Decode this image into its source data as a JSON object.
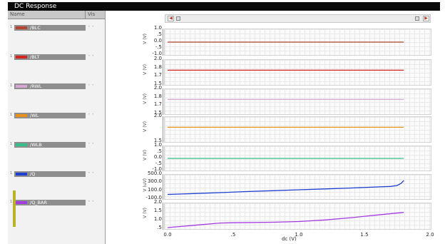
{
  "window": {
    "title": "DC Response"
  },
  "columns": {
    "name": "Name",
    "vis": "Vis"
  },
  "signals": [
    {
      "idx": "1",
      "name": "/BLC",
      "color": "#b5452f",
      "vis": "• •"
    },
    {
      "idx": "1",
      "name": "/BLT",
      "color": "#d4241f",
      "vis": "• •"
    },
    {
      "idx": "1",
      "name": "/RWL",
      "color": "#d7a6d2",
      "vis": "• •"
    },
    {
      "idx": "1",
      "name": "/WL",
      "color": "#e8911a",
      "vis": "• •"
    },
    {
      "idx": "1",
      "name": "/WLB",
      "color": "#33c08a",
      "vis": "• •"
    },
    {
      "idx": "1",
      "name": "/Q",
      "color": "#1f3fd0",
      "vis": "• •"
    },
    {
      "idx": "1",
      "name": "/Q_BAR",
      "color": "#a63be0",
      "vis": "• •"
    }
  ],
  "panels": [
    {
      "signal": "/BLC",
      "ylabel": "V (V)",
      "ticks": [
        "1.0",
        ".5",
        "0.0",
        "-.5",
        "-1.0"
      ],
      "level": 0.0
    },
    {
      "signal": "/BLT",
      "ylabel": "V (V)",
      "ticks": [
        "2.0",
        "1.8",
        "1.7",
        "1.5"
      ],
      "level": 1.8
    },
    {
      "signal": "/RWL",
      "ylabel": "V (V)",
      "ticks": [
        "2.0",
        "1.8",
        "1.7",
        "1.5"
      ],
      "level": 1.8
    },
    {
      "signal": "/WL",
      "ylabel": "V (V)",
      "ticks": [
        "2.0",
        "1.5"
      ],
      "level": 1.8
    },
    {
      "signal": "/WLB",
      "ylabel": "V (V)",
      "ticks": [
        "1.0",
        ".5",
        "0.0",
        "-.5",
        "-1.0"
      ],
      "level": 0.0
    },
    {
      "signal": "/Q",
      "ylabel": "V (uV)",
      "ticks": [
        "500.0",
        "300.0",
        "100.0",
        "-100.0"
      ]
    },
    {
      "signal": "/Q_BAR",
      "ylabel": "V (V)",
      "ticks": [
        "2.0",
        "1.5",
        "1.0",
        ".5"
      ]
    }
  ],
  "chart_data": {
    "type": "line",
    "xlabel": "dc (V)",
    "xticks": [
      "0.0",
      ".5",
      "1.0",
      "1.5",
      "2.0"
    ],
    "xlim": [
      0.0,
      2.0
    ],
    "series": [
      {
        "name": "/BLC",
        "x": [
          0.0,
          1.8
        ],
        "y": [
          0.0,
          0.0
        ],
        "ylim": [
          -1.0,
          1.0
        ],
        "unit": "V"
      },
      {
        "name": "/BLT",
        "x": [
          0.0,
          1.8
        ],
        "y": [
          1.8,
          1.8
        ],
        "ylim": [
          1.5,
          2.0
        ],
        "unit": "V"
      },
      {
        "name": "/RWL",
        "x": [
          0.0,
          1.8
        ],
        "y": [
          1.8,
          1.8
        ],
        "ylim": [
          1.5,
          2.0
        ],
        "unit": "V"
      },
      {
        "name": "/WL",
        "x": [
          0.0,
          1.8
        ],
        "y": [
          1.8,
          1.8
        ],
        "ylim": [
          1.5,
          2.0
        ],
        "unit": "V"
      },
      {
        "name": "/WLB",
        "x": [
          0.0,
          1.8
        ],
        "y": [
          0.0,
          0.0
        ],
        "ylim": [
          -1.0,
          1.0
        ],
        "unit": "V"
      },
      {
        "name": "/Q",
        "x": [
          0.0,
          0.2,
          0.4,
          0.6,
          0.8,
          1.0,
          1.2,
          1.4,
          1.6,
          1.7,
          1.75,
          1.78,
          1.8
        ],
        "y": [
          -10,
          15,
          40,
          70,
          95,
          120,
          145,
          170,
          200,
          215,
          240,
          300,
          380
        ],
        "ylim": [
          -100,
          500
        ],
        "unit": "uV"
      },
      {
        "name": "/Q_BAR",
        "x": [
          0.0,
          0.2,
          0.4,
          0.5,
          0.8,
          1.0,
          1.2,
          1.4,
          1.6,
          1.8
        ],
        "y": [
          0.5,
          0.65,
          0.8,
          0.82,
          0.85,
          0.9,
          1.0,
          1.15,
          1.33,
          1.5
        ],
        "ylim": [
          0.5,
          2.0
        ],
        "unit": "V"
      }
    ]
  }
}
